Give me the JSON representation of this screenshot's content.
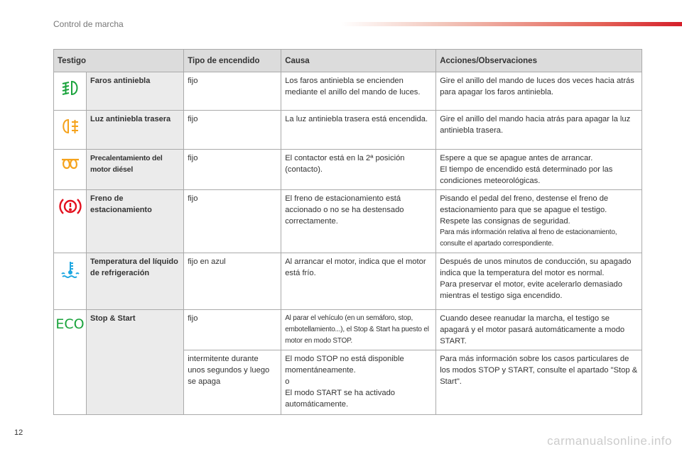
{
  "header": {
    "section": "Control de marcha",
    "accent_color": "#d51f2a"
  },
  "table": {
    "headers": [
      "Testigo",
      "Tipo de encendido",
      "Causa",
      "Acciones/Observaciones"
    ],
    "rows": [
      {
        "icon": "front-fog-lamp-icon",
        "icon_color": "#1aa33c",
        "name": "Faros antiniebla",
        "tipo": "fijo",
        "causa": "Los faros antiniebla se encienden mediante el anillo del mando de luces.",
        "acciones": [
          "Gire el anillo del mando de luces dos veces hacia atrás para apagar los faros antiniebla."
        ]
      },
      {
        "icon": "rear-fog-lamp-icon",
        "icon_color": "#f5a21b",
        "name": "Luz antiniebla trasera",
        "tipo": "fijo",
        "causa": "La luz antiniebla trasera está encendida.",
        "acciones": [
          "Gire el anillo del mando hacia atrás para apagar la luz antiniebla trasera."
        ]
      },
      {
        "icon": "glow-plug-icon",
        "icon_color": "#f5a21b",
        "name": "Precalentamiento del motor diésel",
        "tipo": "fijo",
        "causa": "El contactor está en la 2ª posición (contacto).",
        "acciones": [
          "Espere a que se apague antes de arrancar.",
          "El tiempo de encendido está determinado por las condiciones meteorológicas."
        ]
      },
      {
        "icon": "parking-brake-icon",
        "icon_color": "#e3101e",
        "name": "Freno de estacionamiento",
        "tipo": "fijo",
        "causa": "El freno de estacionamiento está accionado o no se ha destensado correctamente.",
        "acciones": [
          "Pisando el pedal del freno, destense el freno de estacionamiento para que se apague el testigo.",
          "Respete las consignas de seguridad."
        ],
        "acciones_small": "Para más información relativa al freno de estacionamiento, consulte el apartado correspondiente."
      },
      {
        "icon": "coolant-temperature-icon",
        "icon_color": "#1ea7e1",
        "name": "Temperatura del líquido de refrigeración",
        "tipo": "fijo en azul",
        "causa": "Al arrancar el motor, indica que el motor está frío.",
        "acciones": [
          "Después de unos minutos de conducción, su apagado indica que la temperatura del motor es normal.",
          "Para preservar el motor, evite acelerarlo demasiado mientras el testigo siga encendido."
        ]
      },
      {
        "icon": "eco-icon",
        "icon_color": "#1aa33c",
        "icon_text": "ECO",
        "name": "Stop & Start",
        "tipo": "fijo",
        "causa": "Al parar el vehículo (en un semáforo, stop, embotellamiento...), el Stop & Start ha puesto el motor en modo STOP.",
        "acciones": [
          "Cuando desee reanudar la marcha, el testigo se apagará y el motor pasará automáticamente a modo START."
        ]
      },
      {
        "tipo": "intermitente durante unos segundos y luego se apaga",
        "causa_lines": [
          "El modo STOP no está disponible momentáneamente.",
          "o",
          "El modo START se ha activado automáticamente."
        ],
        "acciones": [
          "Para más información sobre los casos particulares de los modos STOP y START, consulte el apartado \"Stop & Start\"."
        ]
      }
    ]
  },
  "footer": {
    "page": "12",
    "watermark": "carmanualsonline.info"
  }
}
